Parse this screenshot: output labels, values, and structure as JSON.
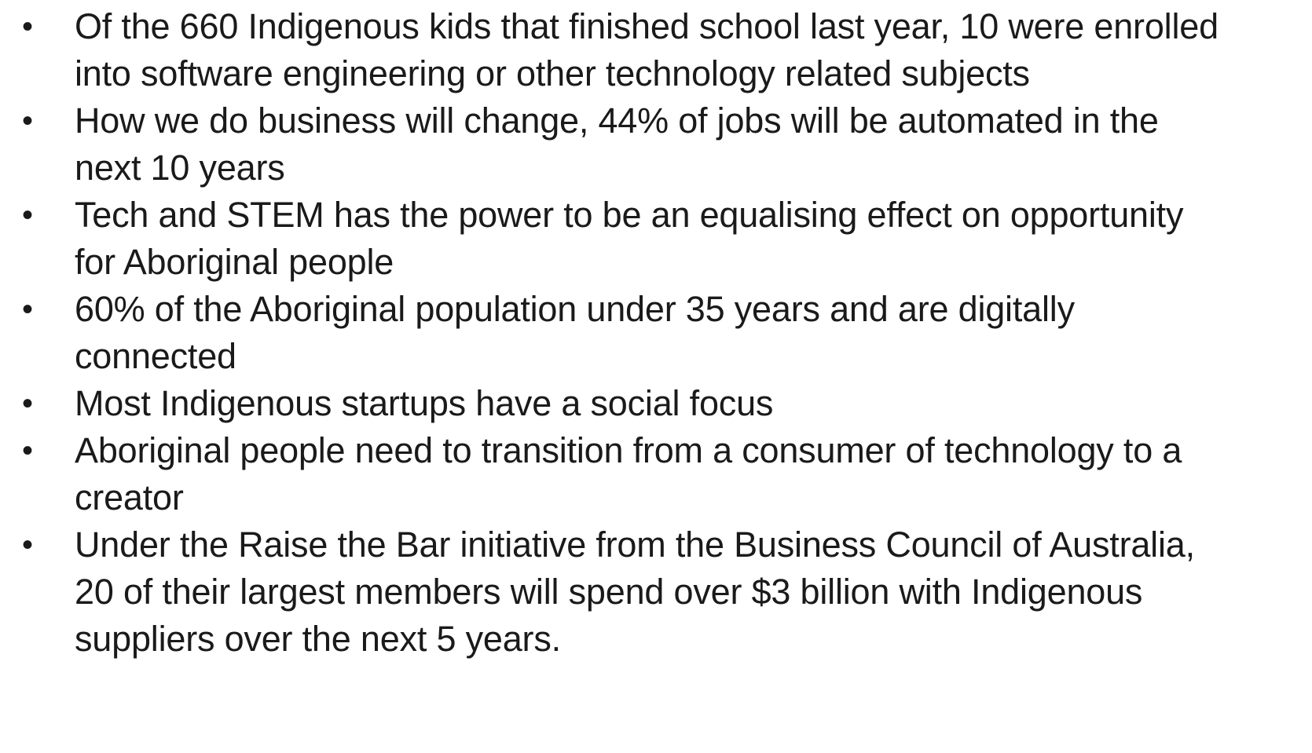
{
  "bullets": [
    "Of the 660 Indigenous kids that finished school last year, 10 were enrolled into software engineering or other technology related subjects",
    "How we do business will change, 44% of jobs will be automated in the next 10 years",
    "Tech and STEM has the power to be an equalising effect on opportunity for Aboriginal people",
    "60% of the Aboriginal population under 35 years and are digitally connected",
    "Most Indigenous startups have a social focus",
    "Aboriginal people need to transition from a consumer of technology to a creator",
    "Under the Raise the Bar initiative from the Business Council of Australia, 20 of their largest members will spend over $3 billion with Indigenous suppliers over the next 5 years."
  ]
}
